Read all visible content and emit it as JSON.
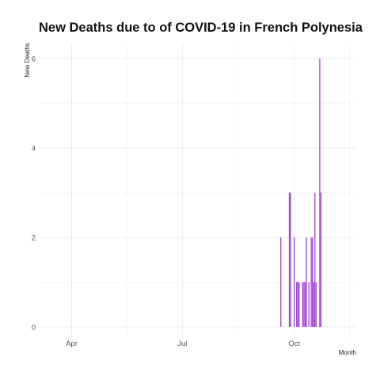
{
  "chart_data": {
    "type": "bar",
    "title": "New Deaths due to of COVID-19 in French Polynesia",
    "xlabel": "Month",
    "ylabel": "New Deaths",
    "bar_color": "#9932CC",
    "grid": true,
    "legend": "none",
    "xlim": [
      "2020-03-05",
      "2020-11-21"
    ],
    "ylim": [
      -0.25,
      6.3
    ],
    "y_ticks": [
      0,
      2,
      4,
      6
    ],
    "x_ticks": [
      {
        "date": "2020-04-01",
        "label": "Apr"
      },
      {
        "date": "2020-07-01",
        "label": "Jul"
      },
      {
        "date": "2020-10-01",
        "label": "Oct"
      }
    ],
    "points": [
      {
        "x": "2020-09-20",
        "y": 2
      },
      {
        "x": "2020-09-27",
        "y": 3
      },
      {
        "x": "2020-09-28",
        "y": 3
      },
      {
        "x": "2020-10-01",
        "y": 2
      },
      {
        "x": "2020-10-03",
        "y": 1
      },
      {
        "x": "2020-10-04",
        "y": 1
      },
      {
        "x": "2020-10-05",
        "y": 1
      },
      {
        "x": "2020-10-08",
        "y": 1
      },
      {
        "x": "2020-10-09",
        "y": 1
      },
      {
        "x": "2020-10-10",
        "y": 1
      },
      {
        "x": "2020-10-11",
        "y": 2
      },
      {
        "x": "2020-10-13",
        "y": 1
      },
      {
        "x": "2020-10-15",
        "y": 2
      },
      {
        "x": "2020-10-16",
        "y": 2
      },
      {
        "x": "2020-10-17",
        "y": 1
      },
      {
        "x": "2020-10-18",
        "y": 3
      },
      {
        "x": "2020-10-19",
        "y": 1
      },
      {
        "x": "2020-10-22",
        "y": 6
      },
      {
        "x": "2020-10-23",
        "y": 3
      }
    ]
  }
}
